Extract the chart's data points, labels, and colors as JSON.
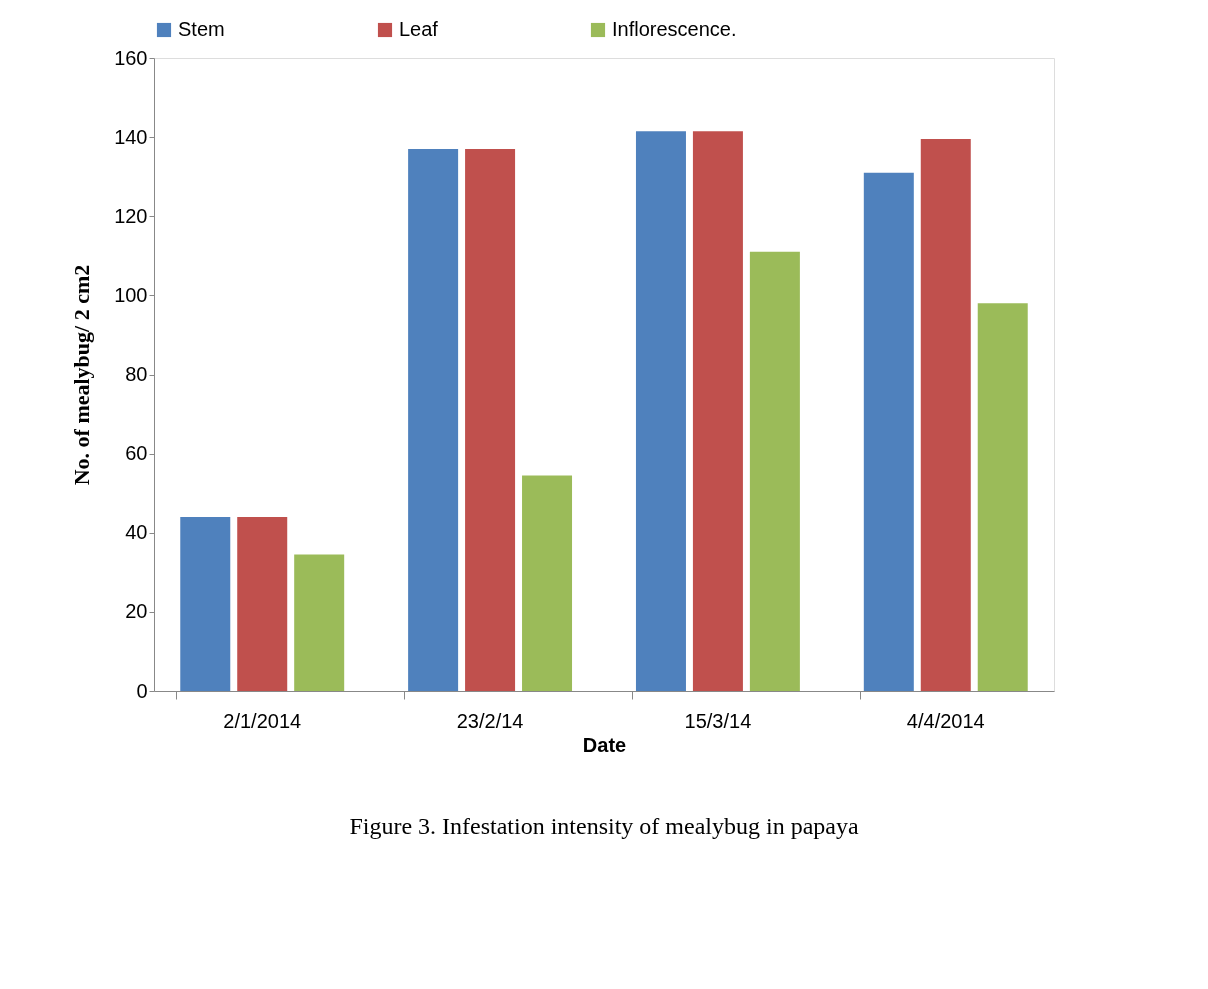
{
  "chart_data": {
    "type": "bar",
    "title": "Figure 3. Infestation intensity of mealybug in papaya",
    "xlabel": "Date",
    "ylabel": "No. of mealybug/ 2 cm2",
    "categories": [
      "2/1/2014",
      "23/2/14",
      "15/3/14",
      "4/4/2014"
    ],
    "series": [
      {
        "name": "Stem",
        "color": "#4f81bd",
        "values": [
          44,
          137,
          141.5,
          131
        ]
      },
      {
        "name": "Leaf",
        "color": "#c0504d",
        "values": [
          44,
          137,
          141.5,
          139.5
        ]
      },
      {
        "name": "Inflorescence.",
        "color": "#9bbb59",
        "values": [
          34.5,
          54.5,
          111,
          98
        ]
      }
    ],
    "ylim": [
      0,
      160
    ],
    "yticks": [
      0,
      20,
      40,
      60,
      80,
      100,
      120,
      140,
      160
    ],
    "grid": false,
    "legend": "top"
  }
}
